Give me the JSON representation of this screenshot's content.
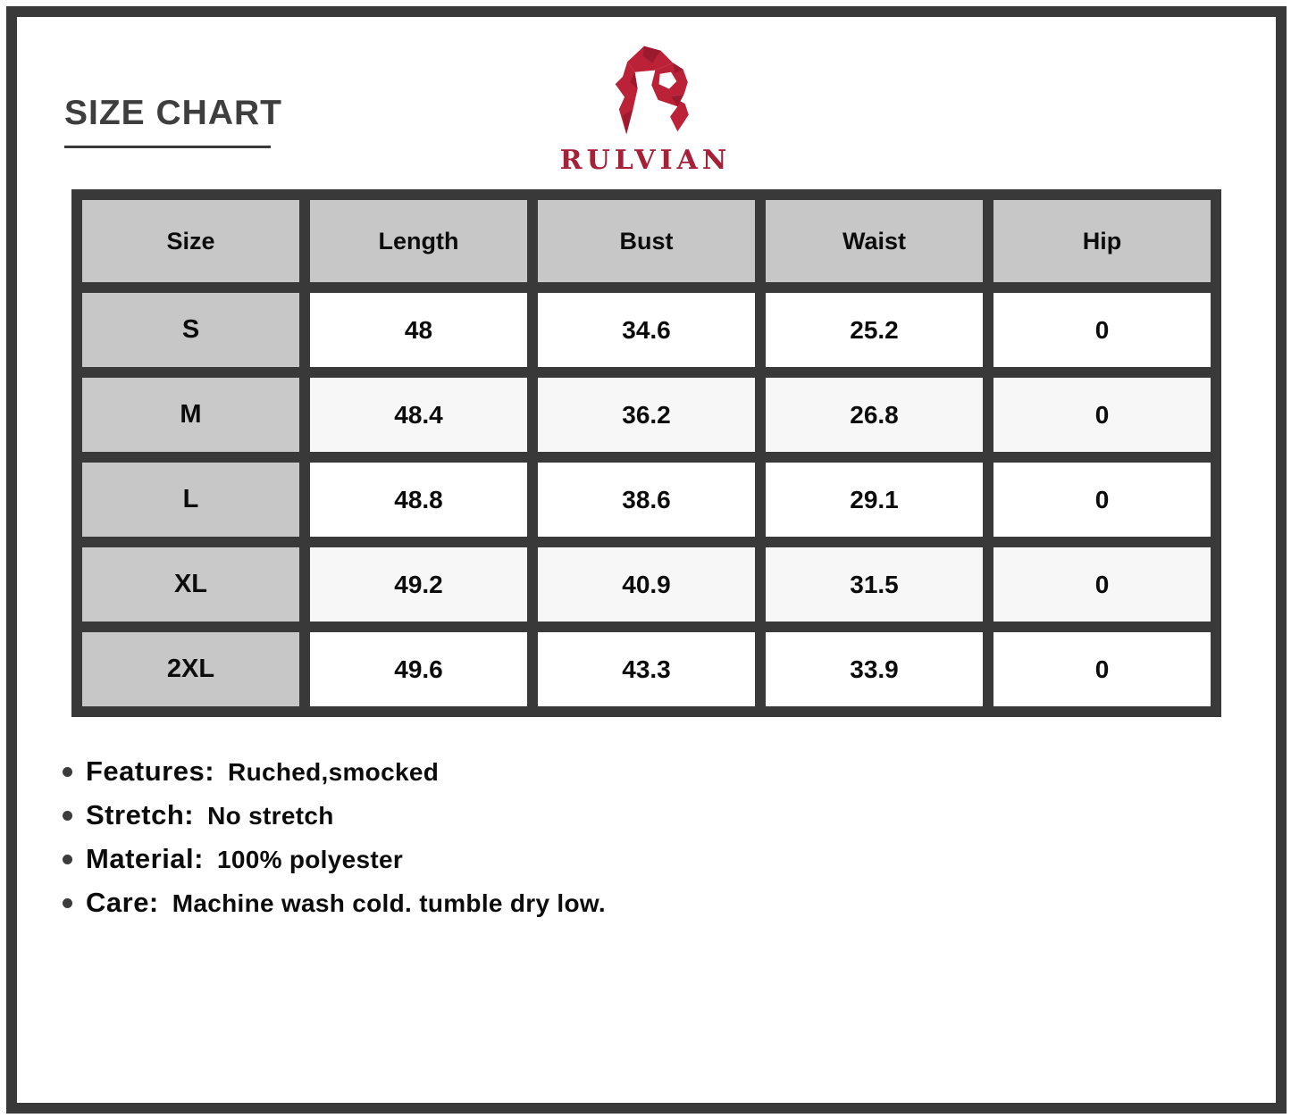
{
  "header": {
    "title": "SIZE CHART"
  },
  "brand": {
    "name": "RULVIAN"
  },
  "size_table": {
    "columns": [
      "Size",
      "Length",
      "Bust",
      "Waist",
      "Hip"
    ],
    "rows": [
      [
        "S",
        "48",
        "34.6",
        "25.2",
        "0"
      ],
      [
        "M",
        "48.4",
        "36.2",
        "26.8",
        "0"
      ],
      [
        "L",
        "48.8",
        "38.6",
        "29.1",
        "0"
      ],
      [
        "XL",
        "49.2",
        "40.9",
        "31.5",
        "0"
      ],
      [
        "2XL",
        "49.6",
        "43.3",
        "33.9",
        "0"
      ]
    ]
  },
  "details": [
    {
      "label": "Features:",
      "value": "Ruched,smocked"
    },
    {
      "label": "Stretch:",
      "value": "No stretch"
    },
    {
      "label": "Material:",
      "value": "100% polyester"
    },
    {
      "label": "Care:",
      "value": "Machine wash cold. tumble dry low."
    }
  ],
  "colors": {
    "brand_red": "#bb2137",
    "brand_red_dark": "#9c1a2e",
    "frame_dark": "#393939",
    "table_header_gray": "#c7c7c7",
    "title_text": "#3e3e3e"
  }
}
